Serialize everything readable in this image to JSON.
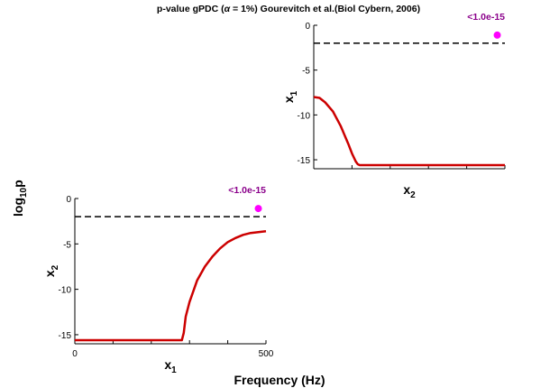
{
  "figure": {
    "title_prefix": "p-value gPDC (",
    "title_alpha": "α",
    "title_suffix": " = 1%) Gourevitch et al.(Biol Cybern, 2006)",
    "ylabel_main": "log",
    "ylabel_sub": "10",
    "ylabel_end": "p",
    "xlabel": "Frequency (Hz)"
  },
  "chart_data": [
    {
      "type": "line",
      "panel": "x1 to x2 (bottom-left)",
      "ylabel_main": "x",
      "ylabel_sub": "2",
      "xlabel_main": "x",
      "xlabel_sub": "1",
      "annotation": "<1.0e-15",
      "annotation_color": "#8B008B",
      "xlim": [
        0,
        500
      ],
      "ylim": [
        -16,
        0
      ],
      "xticks": [
        0,
        500
      ],
      "xtick_labels": [
        "0",
        "500"
      ],
      "yticks": [
        0,
        -5,
        -10,
        -15
      ],
      "ytick_labels": [
        "0",
        "-5",
        "-10",
        "-15"
      ],
      "threshold": -2,
      "threshold_style": "dashed",
      "marker": {
        "x": 480,
        "y": -1.1,
        "color": "#FF00FF"
      },
      "series": [
        {
          "color": "#CC0000",
          "x": [
            0,
            280,
            285,
            290,
            300,
            320,
            340,
            360,
            380,
            400,
            420,
            440,
            460,
            480,
            500
          ],
          "y": [
            -15.6,
            -15.6,
            -14.8,
            -13.0,
            -11.4,
            -9.0,
            -7.5,
            -6.4,
            -5.5,
            -4.8,
            -4.35,
            -4.0,
            -3.8,
            -3.7,
            -3.6
          ]
        }
      ]
    },
    {
      "type": "line",
      "panel": "x2 to x1 (top-right)",
      "ylabel_main": "x",
      "ylabel_sub": "1",
      "xlabel_main": "x",
      "xlabel_sub": "2",
      "annotation": "<1.0e-15",
      "annotation_color": "#8B008B",
      "xlim": [
        0,
        500
      ],
      "ylim": [
        -16,
        0
      ],
      "yticks": [
        0,
        -5,
        -10,
        -15
      ],
      "ytick_labels": [
        "0",
        "-5",
        "-10",
        "-15"
      ],
      "threshold": -2,
      "threshold_style": "dashed",
      "marker": {
        "x": 480,
        "y": -1.1,
        "color": "#FF00FF"
      },
      "series": [
        {
          "color": "#CC0000",
          "x": [
            0,
            15,
            30,
            50,
            70,
            90,
            100,
            110,
            115,
            120,
            140,
            200,
            300,
            400,
            500
          ],
          "y": [
            -8.0,
            -8.1,
            -8.6,
            -9.6,
            -11.2,
            -13.2,
            -14.3,
            -15.2,
            -15.5,
            -15.6,
            -15.6,
            -15.6,
            -15.6,
            -15.6,
            -15.6
          ]
        }
      ]
    }
  ],
  "colors": {
    "axis": "#000000",
    "line": "#CC0000",
    "marker": "#FF00FF",
    "annotation": "#8B008B"
  }
}
